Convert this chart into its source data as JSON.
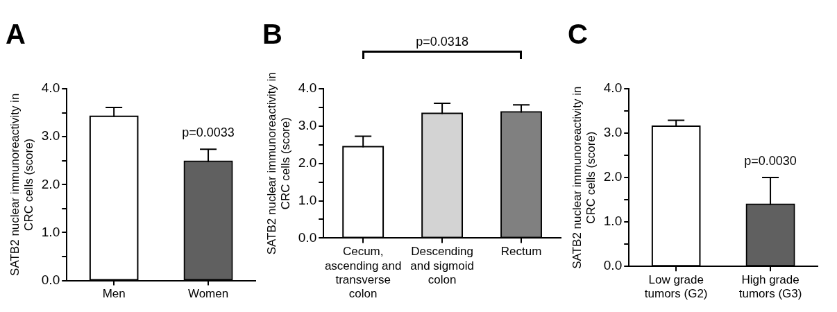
{
  "chart_data": [
    {
      "type": "bar",
      "title": "A",
      "ylabel": "SATB2 nuclear immunoreactivity in CRC cells (score)",
      "categories": [
        "Men",
        "Women"
      ],
      "values": [
        3.41,
        2.47
      ],
      "colors": [
        "#ffffff",
        "#606060"
      ],
      "errors": [
        [
          3.41,
          3.61
        ],
        [
          2.47,
          2.74
        ]
      ],
      "ylim": [
        0,
        4
      ],
      "yticks": [
        {
          "value": 0,
          "label": "0.0"
        },
        {
          "value": 0.5,
          "label": null
        },
        {
          "value": 1,
          "label": "1.0"
        },
        {
          "value": 1.5,
          "label": null
        },
        {
          "value": 2,
          "label": "2.0"
        },
        {
          "value": 2.5,
          "label": null
        },
        {
          "value": 3,
          "label": "3.0"
        },
        {
          "value": 3.5,
          "label": null
        },
        {
          "value": 4,
          "label": "4.0"
        }
      ],
      "grid": false,
      "legend": false,
      "annotations": [
        "p=0.0033"
      ]
    },
    {
      "type": "bar",
      "title": "B",
      "ylabel": "SATB2 nuclear immunoreactivity in CRC cells (score)",
      "categories": [
        "Cecum, ascending and transverse colon",
        "Descending and sigmoid colon",
        "Rectum"
      ],
      "values": [
        2.43,
        3.32,
        3.36
      ],
      "colors": [
        "#ffffff",
        "#d3d3d3",
        "#808080"
      ],
      "errors": [
        [
          2.43,
          2.73
        ],
        [
          3.32,
          3.61
        ],
        [
          3.36,
          3.57
        ]
      ],
      "ylim": [
        0,
        4
      ],
      "yticks": [
        {
          "value": 0,
          "label": "0.0"
        },
        {
          "value": 0.5,
          "label": null
        },
        {
          "value": 1,
          "label": "1.0"
        },
        {
          "value": 1.5,
          "label": null
        },
        {
          "value": 2,
          "label": "2.0"
        },
        {
          "value": 2.5,
          "label": null
        },
        {
          "value": 3,
          "label": "3.0"
        },
        {
          "value": 3.5,
          "label": null
        },
        {
          "value": 4,
          "label": "4.0"
        }
      ],
      "grid": false,
      "legend": false,
      "annotations": [
        "p=0.0318"
      ]
    },
    {
      "type": "bar",
      "title": "C",
      "ylabel": "SATB2 nuclear immunoreactivity in CRC cells (score)",
      "categories": [
        "Low grade tumors (G2)",
        "High grade tumors (G3)"
      ],
      "values": [
        3.14,
        1.38
      ],
      "colors": [
        "#ffffff",
        "#606060"
      ],
      "errors": [
        [
          3.14,
          3.29
        ],
        [
          1.38,
          2.0
        ]
      ],
      "ylim": [
        0,
        4
      ],
      "yticks": [
        {
          "value": 0,
          "label": "0.0"
        },
        {
          "value": 0.5,
          "label": null
        },
        {
          "value": 1,
          "label": "1.0"
        },
        {
          "value": 1.5,
          "label": null
        },
        {
          "value": 2,
          "label": "2.0"
        },
        {
          "value": 2.5,
          "label": null
        },
        {
          "value": 3,
          "label": "3.0"
        },
        {
          "value": 3.5,
          "label": null
        },
        {
          "value": 4,
          "label": "4.0"
        }
      ],
      "grid": false,
      "legend": false,
      "annotations": [
        "p=0.0030"
      ]
    }
  ]
}
